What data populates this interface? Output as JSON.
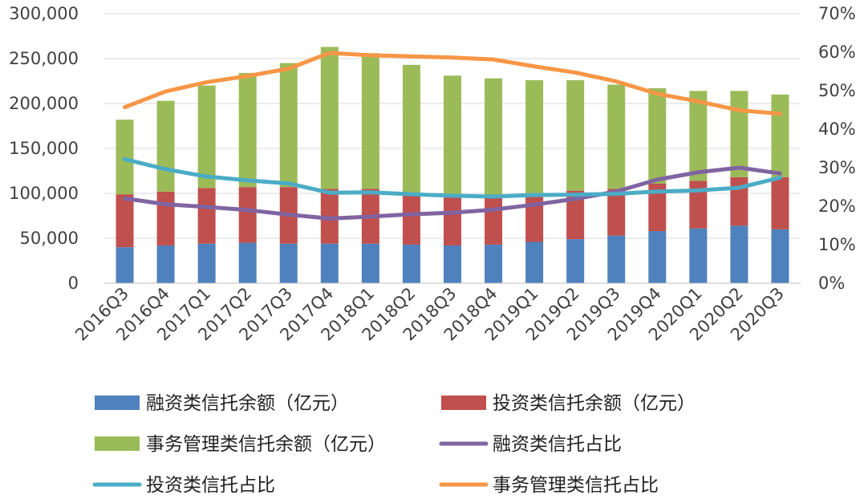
{
  "chart_data": {
    "type": "bar",
    "categories": [
      "2016Q3",
      "2016Q4",
      "2017Q1",
      "2017Q2",
      "2017Q3",
      "2017Q4",
      "2018Q1",
      "2018Q2",
      "2018Q3",
      "2018Q4",
      "2019Q1",
      "2019Q2",
      "2019Q3",
      "2019Q4",
      "2020Q1",
      "2020Q2",
      "2020Q3"
    ],
    "stacked": true,
    "series": [
      {
        "name": "融资类信托余额（亿元）",
        "kind": "bar",
        "axis": "left",
        "color": "#4F81BD",
        "values": [
          40000,
          42000,
          44000,
          45000,
          44000,
          44000,
          44000,
          43000,
          42000,
          43000,
          46000,
          49000,
          53000,
          58000,
          61000,
          64000,
          60000
        ]
      },
      {
        "name": "投资类信托余额（亿元）",
        "kind": "bar",
        "axis": "left",
        "color": "#C0504D",
        "values": [
          59000,
          60000,
          62000,
          62000,
          63000,
          61000,
          61000,
          57000,
          55000,
          54000,
          53000,
          54000,
          52000,
          53000,
          53000,
          54000,
          58000
        ]
      },
      {
        "name": "事务管理类信托余额（亿元）",
        "kind": "bar",
        "axis": "left",
        "color": "#9BBB59",
        "values": [
          83000,
          101000,
          114000,
          127000,
          138000,
          158000,
          151000,
          143000,
          134000,
          131000,
          127000,
          123000,
          116000,
          106000,
          100000,
          96000,
          92000
        ]
      },
      {
        "name": "融资类信托占比",
        "kind": "line",
        "axis": "right",
        "color": "#8064A2",
        "values": [
          22.0,
          20.5,
          19.8,
          19.0,
          17.8,
          16.8,
          17.3,
          17.9,
          18.3,
          19.1,
          20.4,
          21.9,
          23.8,
          26.9,
          28.8,
          30.0,
          28.5
        ]
      },
      {
        "name": "投资类信托占比",
        "kind": "line",
        "axis": "right",
        "color": "#4BACC6",
        "values": [
          32.2,
          29.6,
          27.7,
          26.7,
          25.9,
          23.5,
          23.6,
          23.1,
          22.7,
          22.5,
          22.9,
          23.0,
          23.2,
          23.8,
          24.1,
          24.8,
          27.4
        ]
      },
      {
        "name": "事务管理类信托占比",
        "kind": "line",
        "axis": "right",
        "color": "#F79646",
        "values": [
          45.7,
          49.8,
          52.2,
          53.8,
          55.7,
          59.8,
          59.2,
          58.9,
          58.6,
          58.1,
          56.3,
          54.7,
          52.4,
          49.2,
          47.2,
          44.9,
          44.0
        ]
      }
    ],
    "y_left": {
      "min": 0,
      "max": 300000,
      "ticks": [
        "0",
        "50,000",
        "100,000",
        "150,000",
        "200,000",
        "250,000",
        "300,000"
      ]
    },
    "y_right": {
      "min": 0,
      "max": 70,
      "ticks": [
        "0%",
        "10%",
        "20%",
        "30%",
        "40%",
        "50%",
        "60%",
        "70%"
      ]
    },
    "grid": true,
    "legend_position": "bottom",
    "title": "",
    "xlabel": "",
    "ylabel": ""
  }
}
